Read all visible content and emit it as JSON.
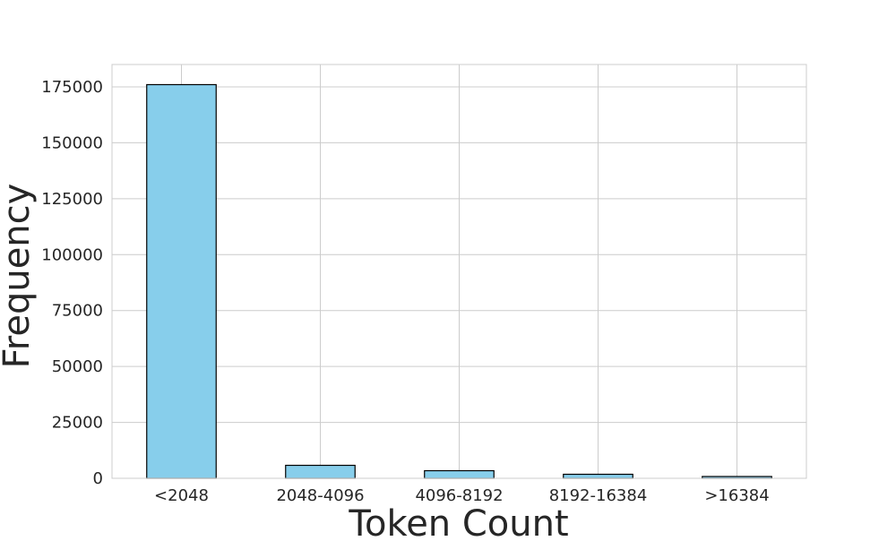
{
  "chart_data": {
    "type": "bar",
    "categories": [
      "<2048",
      "2048-4096",
      "4096-8192",
      "8192-16384",
      ">16384"
    ],
    "values": [
      176000,
      5800,
      3400,
      1800,
      800
    ],
    "xlabel": "Token Count",
    "ylabel": "Frequency",
    "ylim": [
      0,
      185000
    ],
    "yticks": [
      0,
      25000,
      50000,
      75000,
      100000,
      125000,
      150000,
      175000
    ],
    "ytick_labels": [
      "0",
      "25000",
      "50000",
      "75000",
      "100000",
      "125000",
      "150000",
      "175000"
    ],
    "grid": true,
    "bar_color": "#87ceeb",
    "bar_edge_color": "#000000",
    "grid_color": "#cccccc"
  }
}
